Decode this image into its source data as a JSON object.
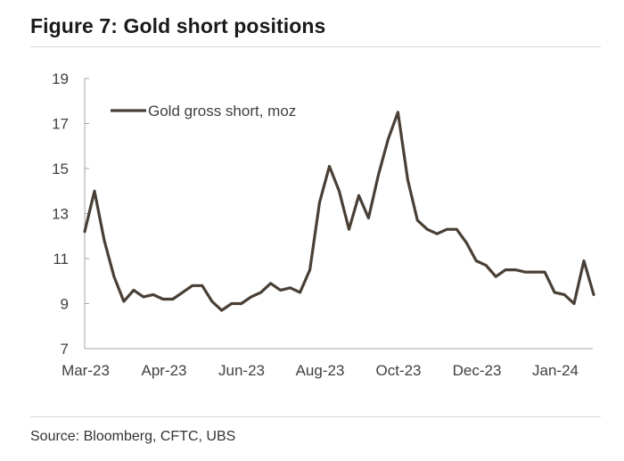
{
  "header": {
    "title": "Figure 7: Gold short positions"
  },
  "footer": {
    "source": "Source: Bloomberg, CFTC, UBS"
  },
  "colors": {
    "line": "#4a3f35",
    "axis": "#a6a6a6",
    "text": "#404040"
  },
  "chart_data": {
    "type": "line",
    "title": "Figure 7: Gold short positions",
    "xlabel": "",
    "ylabel": "",
    "ylim": [
      7,
      19
    ],
    "yticks": [
      7,
      9,
      11,
      13,
      15,
      17,
      19
    ],
    "xtick_labels": [
      "Mar-23",
      "Apr-23",
      "Jun-23",
      "Aug-23",
      "Oct-23",
      "Dec-23",
      "Jan-24"
    ],
    "grid": false,
    "legend_position": "top-left",
    "series": [
      {
        "name": "Gold gross short, moz",
        "values": [
          12.2,
          14.0,
          11.8,
          10.2,
          9.1,
          9.6,
          9.3,
          9.4,
          9.2,
          9.2,
          9.5,
          9.8,
          9.8,
          9.1,
          8.7,
          9.0,
          9.0,
          9.3,
          9.5,
          9.9,
          9.6,
          9.7,
          9.5,
          10.5,
          13.5,
          15.1,
          14.0,
          12.3,
          13.8,
          12.8,
          14.7,
          16.3,
          17.5,
          14.5,
          12.7,
          12.3,
          12.1,
          12.3,
          12.3,
          11.7,
          10.9,
          10.7,
          10.2,
          10.5,
          10.5,
          10.4,
          10.4,
          10.4,
          9.5,
          9.4,
          9.0,
          10.9,
          9.4
        ]
      }
    ]
  }
}
